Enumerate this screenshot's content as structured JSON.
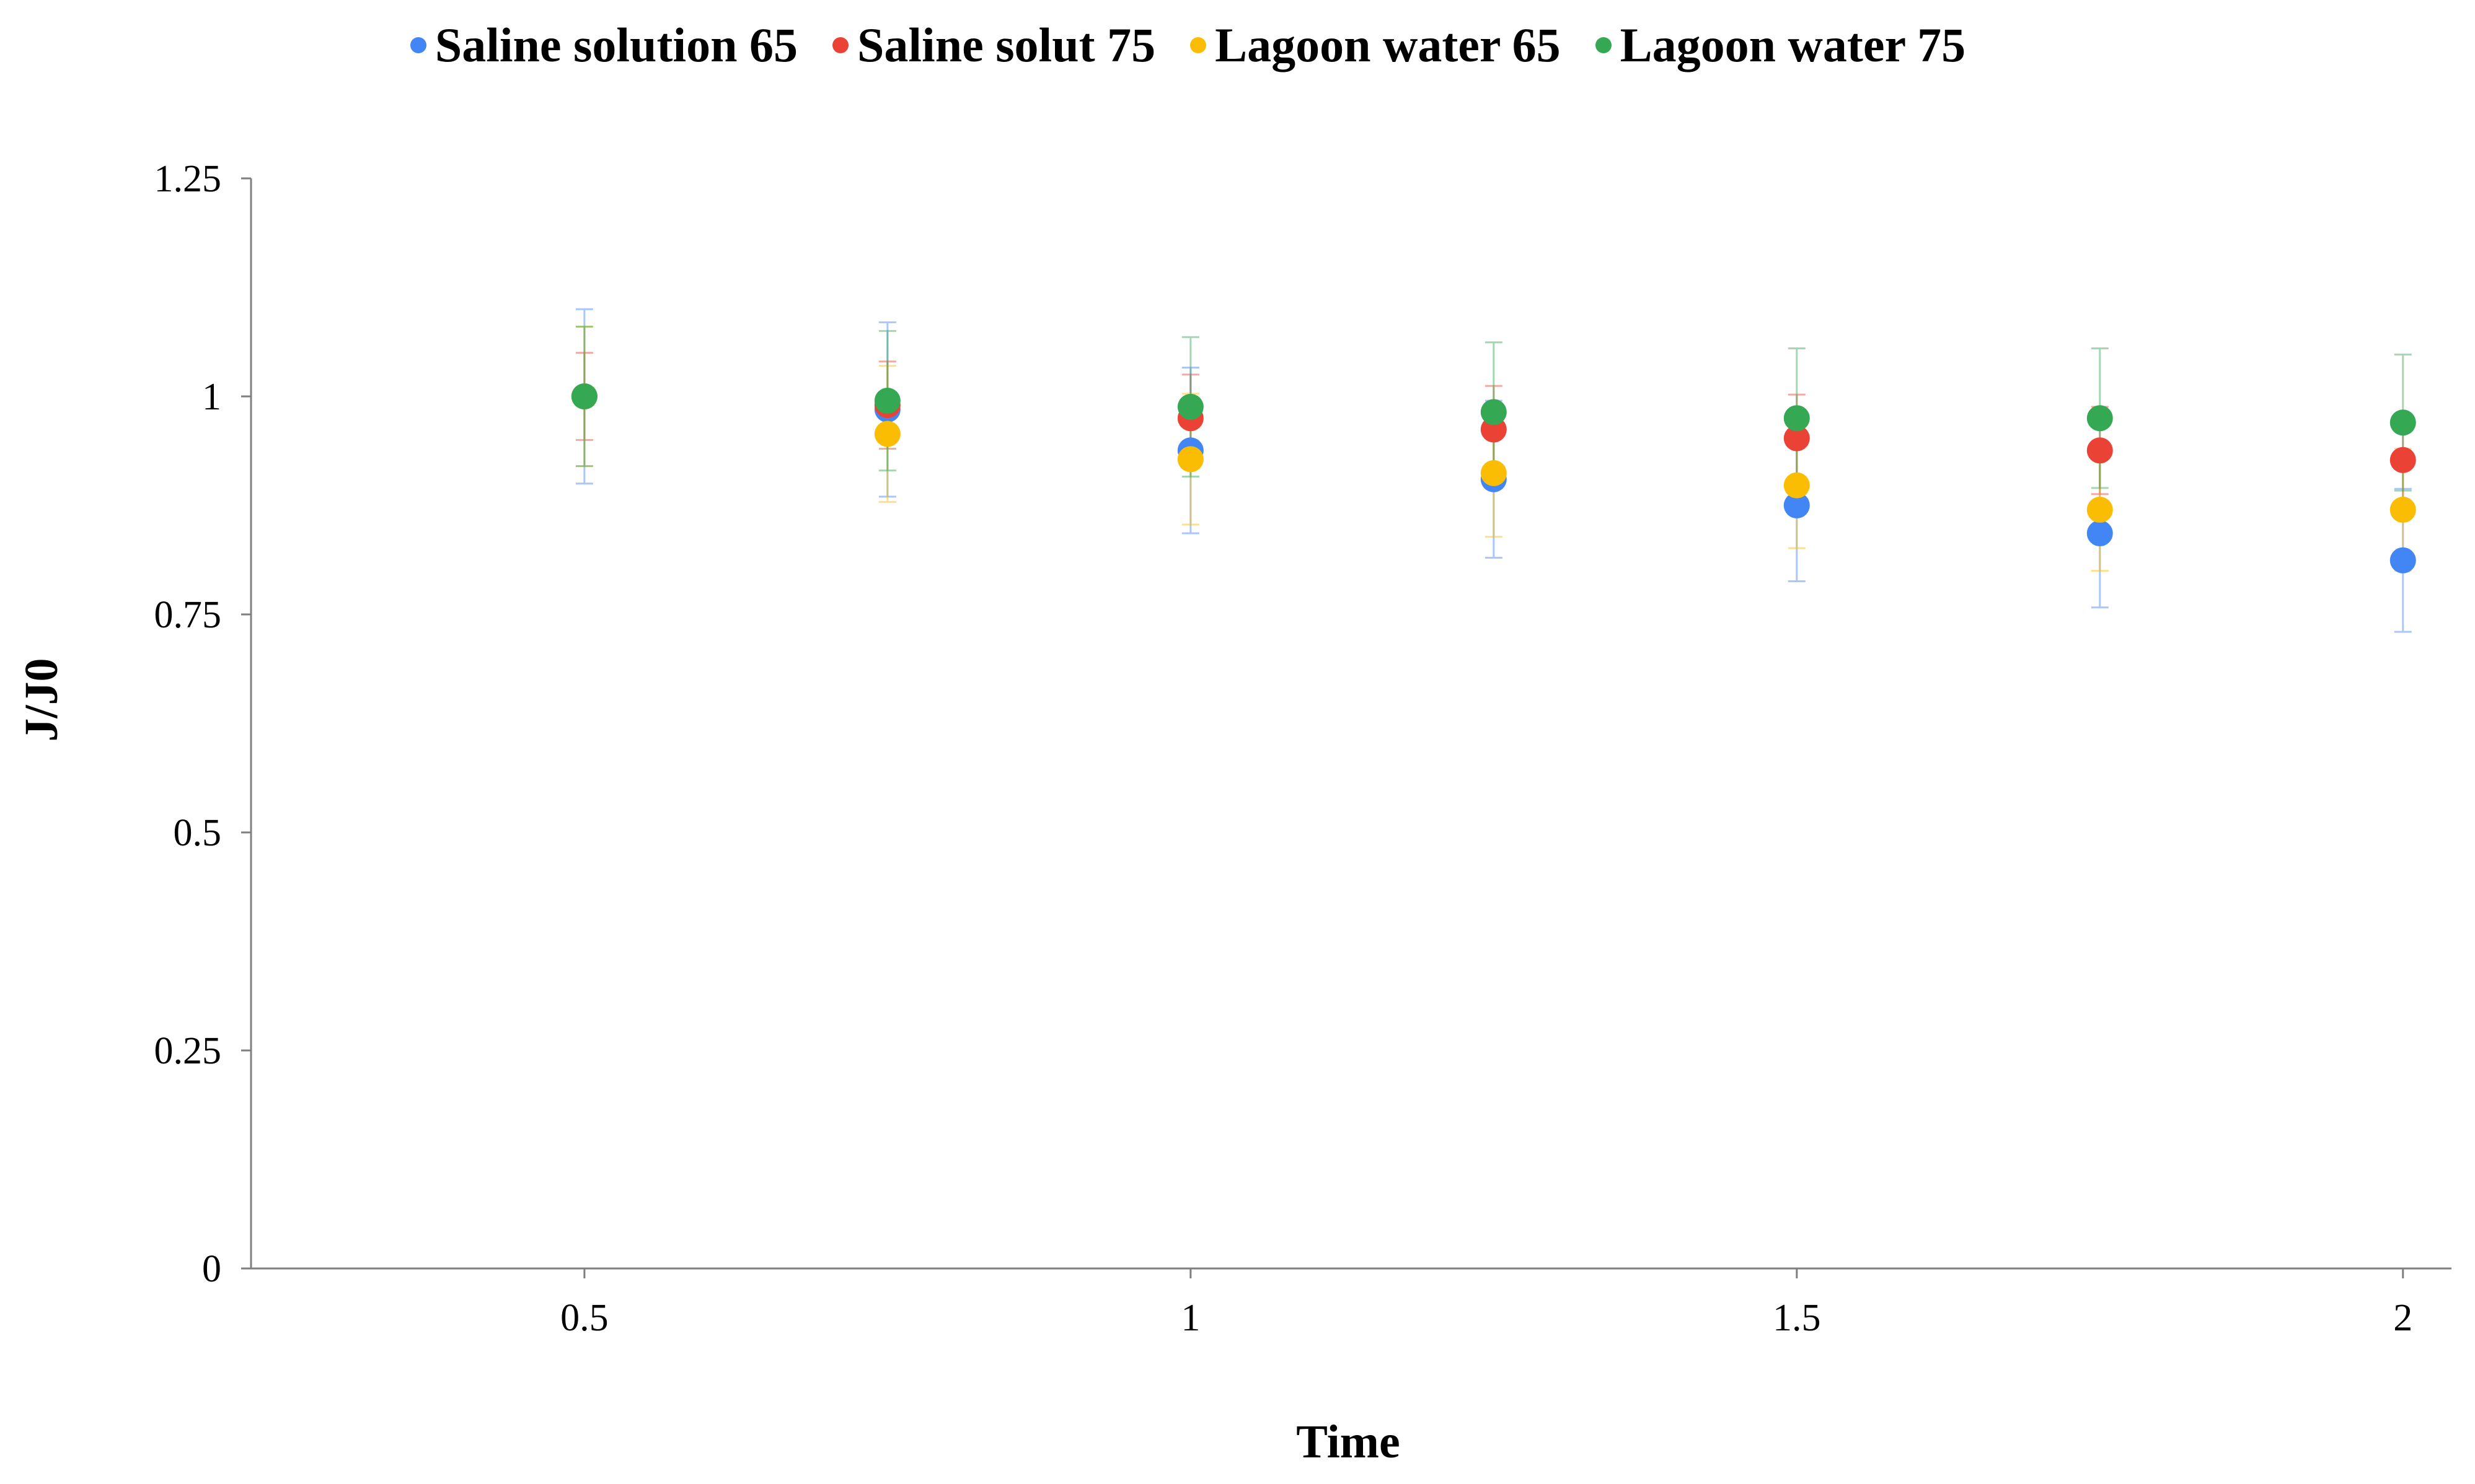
{
  "chart_data": {
    "type": "scatter",
    "title": "",
    "xlabel": "Time",
    "ylabel": "J/J0",
    "xlim": [
      0.225,
      2.04
    ],
    "ylim": [
      0,
      1.25
    ],
    "x_ticks": [
      0.5,
      1,
      1.5,
      2
    ],
    "x_tick_labels": [
      "0.5",
      "1",
      "1.5",
      "2"
    ],
    "y_ticks": [
      0,
      0.25,
      0.5,
      0.75,
      1,
      1.25
    ],
    "y_tick_labels": [
      "0",
      "0.25",
      "0.5",
      "0.75",
      "1",
      "1.25"
    ],
    "legend_position": "top-center",
    "grid": false,
    "series": [
      {
        "name": "Saline solution 65",
        "color": "#4285F4",
        "x": [
          0.5,
          0.75,
          1,
          1.25,
          1.5,
          1.75,
          2
        ],
        "y": [
          1.0,
          0.985,
          0.938,
          0.905,
          0.875,
          0.843,
          0.812
        ],
        "error": [
          0.1,
          0.1,
          0.095,
          0.09,
          0.087,
          0.085,
          0.082
        ]
      },
      {
        "name": "Saline solut 75",
        "color": "#EA4335",
        "x": [
          0.5,
          0.75,
          1,
          1.25,
          1.5,
          1.75,
          2
        ],
        "y": [
          1.0,
          0.99,
          0.975,
          0.962,
          0.952,
          0.938,
          0.927
        ],
        "error": [
          0.05,
          0.05,
          0.05,
          0.05,
          0.05,
          0.05,
          0.05
        ]
      },
      {
        "name": "Lagoon water 65",
        "color": "#FBBC04",
        "x": [
          0.5,
          0.75,
          1,
          1.25,
          1.5,
          1.75,
          2
        ],
        "y": [
          1.0,
          0.957,
          0.928,
          0.912,
          0.898,
          0.87,
          0.87
        ],
        "error": [
          0.08,
          0.078,
          0.075,
          0.073,
          0.072,
          0.07,
          0.07
        ]
      },
      {
        "name": "Lagoon water 75",
        "color": "#34A853",
        "x": [
          0.5,
          0.75,
          1,
          1.25,
          1.5,
          1.75,
          2
        ],
        "y": [
          1.0,
          0.995,
          0.988,
          0.982,
          0.975,
          0.975,
          0.97
        ],
        "error": [
          0.08,
          0.08,
          0.08,
          0.08,
          0.08,
          0.08,
          0.078
        ]
      }
    ]
  }
}
